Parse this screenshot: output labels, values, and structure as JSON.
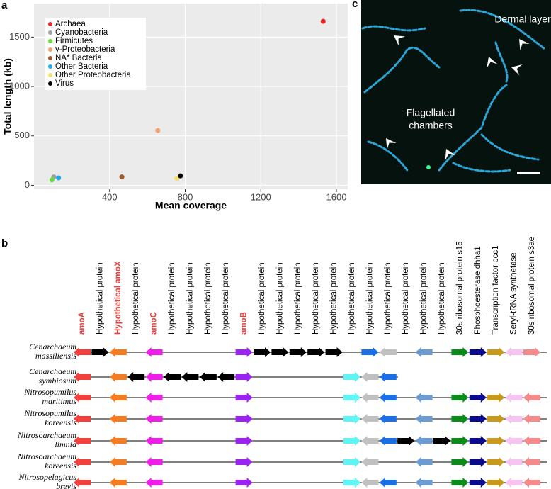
{
  "panel_labels": [
    "a",
    "b",
    "c"
  ],
  "chart_data": {
    "type": "scatter",
    "xlabel": "Mean coverage",
    "ylabel": "Total length (kb)",
    "xlim": [
      0,
      1660
    ],
    "ylim": [
      -40,
      1840
    ],
    "xticks": [
      400,
      800,
      1200,
      1600
    ],
    "yticks": [
      0,
      500,
      1000,
      1500
    ],
    "grid": true,
    "legend": "upper left",
    "series": [
      {
        "name": "Archaea",
        "color": "#ee2222",
        "x": [
          1530
        ],
        "values": [
          1660
        ]
      },
      {
        "name": "Cyanobacteria",
        "color": "#a0a0a0",
        "x": [
          105
        ],
        "values": [
          85
        ]
      },
      {
        "name": "Firmicutes",
        "color": "#66dd33",
        "x": [
          95
        ],
        "values": [
          55
        ]
      },
      {
        "name": "γ-Proteobacteria",
        "color": "#f4a070",
        "x": [
          655
        ],
        "values": [
          555
        ]
      },
      {
        "name": "NA* Bacteria",
        "color": "#a0582a",
        "x": [
          465
        ],
        "values": [
          85
        ]
      },
      {
        "name": "Other Bacteria",
        "color": "#1fa8f0",
        "x": [
          130
        ],
        "values": [
          75
        ]
      },
      {
        "name": "Other Proteobacteria",
        "color": "#f8e070",
        "x": [
          755
        ],
        "values": [
          70
        ]
      },
      {
        "name": "Virus",
        "color": "#000000",
        "x": [
          775
        ],
        "values": [
          95
        ]
      }
    ]
  },
  "image": {
    "annotations": [
      [
        "Dermal layer"
      ],
      [
        "Flagellated",
        "chambers"
      ]
    ]
  },
  "genes": {
    "columns": [
      {
        "label": "amoA",
        "color": "#e8413c"
      },
      {
        "label": "Hypothetical protein",
        "color": "#000000"
      },
      {
        "label": "Hypothetical amoX",
        "color": "#e8413c"
      },
      {
        "label": "Hypothetical protein",
        "color": "#000000"
      },
      {
        "label": "amoC",
        "color": "#e8413c"
      },
      {
        "label": "Hypothetical protein",
        "color": "#000000"
      },
      {
        "label": "Hypothetical protein",
        "color": "#000000"
      },
      {
        "label": "Hypothetical protein",
        "color": "#000000"
      },
      {
        "label": "Hypothetical protein",
        "color": "#000000"
      },
      {
        "label": "amoB",
        "color": "#e8413c"
      },
      {
        "label": "Hypothetical protein",
        "color": "#000000"
      },
      {
        "label": "Hypothetical protein",
        "color": "#000000"
      },
      {
        "label": "Hypothetical protein",
        "color": "#000000"
      },
      {
        "label": "Hypothetical protein",
        "color": "#000000"
      },
      {
        "label": "Hypothetical protein",
        "color": "#000000"
      },
      {
        "label": "Hypothetical protein",
        "color": "#000000"
      },
      {
        "label": "Hypothetical protein",
        "color": "#000000"
      },
      {
        "label": "Hypothetical protein",
        "color": "#000000"
      },
      {
        "label": "Hypothetical protein",
        "color": "#000000"
      },
      {
        "label": "Hypothetical protein",
        "color": "#000000"
      },
      {
        "label": "Hypothetical protein",
        "color": "#000000"
      },
      {
        "label": "30s ribosomal protein s15",
        "color": "#000000"
      },
      {
        "label": "Phosphoesterase dhha1",
        "color": "#000000"
      },
      {
        "label": "Transcription factor pcc1",
        "color": "#000000"
      },
      {
        "label": "Seryl-tRNA synthetase",
        "color": "#000000"
      },
      {
        "label": "30s ribosomal protein s3ae",
        "color": "#000000"
      }
    ],
    "rows": [
      {
        "name": [
          "Cenarchaeum",
          "massiliensis"
        ],
        "genes": [
          {
            "dir": "L",
            "color": "#f0413c"
          },
          {
            "dir": "R",
            "color": "#000000"
          },
          {
            "dir": "L",
            "color": "#f57c20"
          },
          null,
          {
            "dir": "L",
            "color": "#ee1ee8"
          },
          null,
          null,
          null,
          null,
          {
            "dir": "R",
            "color": "#9b22f0"
          },
          {
            "dir": "R",
            "color": "#000000"
          },
          {
            "dir": "R",
            "color": "#000000"
          },
          {
            "dir": "R",
            "color": "#000000"
          },
          {
            "dir": "R",
            "color": "#000000"
          },
          {
            "dir": "R",
            "color": "#000000"
          },
          null,
          {
            "dir": "R",
            "color": "#1b6fe6"
          },
          {
            "dir": "L",
            "color": "#c0c0c0"
          },
          null,
          {
            "dir": "L",
            "color": "#6b9bd1"
          },
          null,
          {
            "dir": "R",
            "color": "#0a8c1a"
          },
          {
            "dir": "R",
            "color": "#0a0a8c"
          },
          {
            "dir": "R",
            "color": "#c8991a"
          },
          {
            "dir": "L",
            "color": "#f7c3f1"
          },
          {
            "dir": "R",
            "color": "#f48a8a"
          }
        ]
      },
      {
        "name": [
          "Cenarchaeum",
          "symbiosum"
        ],
        "genes": [
          {
            "dir": "L",
            "color": "#f0413c"
          },
          null,
          {
            "dir": "L",
            "color": "#f57c20"
          },
          {
            "dir": "L",
            "color": "#000000"
          },
          {
            "dir": "L",
            "color": "#ee1ee8"
          },
          {
            "dir": "L",
            "color": "#000000"
          },
          {
            "dir": "L",
            "color": "#000000"
          },
          {
            "dir": "L",
            "color": "#000000"
          },
          {
            "dir": "L",
            "color": "#000000"
          },
          {
            "dir": "R",
            "color": "#9b22f0"
          },
          null,
          null,
          null,
          null,
          null,
          {
            "dir": "R",
            "color": "#5ef4f4"
          },
          {
            "dir": "L",
            "color": "#c0c0c0"
          },
          {
            "dir": "L",
            "color": "#1b6fe6"
          },
          null,
          null,
          null,
          null,
          null,
          null,
          null,
          null
        ]
      },
      {
        "name": [
          "Nitrosopumilus",
          "maritimus"
        ],
        "genes": [
          {
            "dir": "L",
            "color": "#f0413c"
          },
          null,
          {
            "dir": "L",
            "color": "#f57c20"
          },
          null,
          {
            "dir": "L",
            "color": "#ee1ee8"
          },
          null,
          null,
          null,
          null,
          {
            "dir": "R",
            "color": "#9b22f0"
          },
          null,
          null,
          null,
          null,
          null,
          {
            "dir": "R",
            "color": "#5ef4f4"
          },
          {
            "dir": "L",
            "color": "#c0c0c0"
          },
          {
            "dir": "L",
            "color": "#1b6fe6"
          },
          null,
          {
            "dir": "L",
            "color": "#6b9bd1"
          },
          null,
          {
            "dir": "R",
            "color": "#0a8c1a"
          },
          {
            "dir": "R",
            "color": "#0a0a8c"
          },
          {
            "dir": "R",
            "color": "#c8991a"
          },
          {
            "dir": "L",
            "color": "#f7c3f1"
          },
          {
            "dir": "L",
            "color": "#f48a8a"
          }
        ]
      },
      {
        "name": [
          "Nitrosopumilus",
          "koreensis"
        ],
        "genes": [
          {
            "dir": "L",
            "color": "#f0413c"
          },
          null,
          {
            "dir": "L",
            "color": "#f57c20"
          },
          null,
          {
            "dir": "L",
            "color": "#ee1ee8"
          },
          null,
          null,
          null,
          null,
          {
            "dir": "R",
            "color": "#9b22f0"
          },
          null,
          null,
          null,
          null,
          null,
          {
            "dir": "R",
            "color": "#5ef4f4"
          },
          {
            "dir": "L",
            "color": "#c0c0c0"
          },
          {
            "dir": "L",
            "color": "#1b6fe6"
          },
          null,
          {
            "dir": "L",
            "color": "#6b9bd1"
          },
          null,
          {
            "dir": "R",
            "color": "#0a8c1a"
          },
          {
            "dir": "R",
            "color": "#0a0a8c"
          },
          {
            "dir": "R",
            "color": "#c8991a"
          },
          {
            "dir": "L",
            "color": "#f7c3f1"
          },
          {
            "dir": "L",
            "color": "#f48a8a"
          }
        ]
      },
      {
        "name": [
          "Nitrosoarchaeum",
          "limnia"
        ],
        "genes": [
          {
            "dir": "L",
            "color": "#f0413c"
          },
          null,
          {
            "dir": "L",
            "color": "#f57c20"
          },
          null,
          {
            "dir": "L",
            "color": "#ee1ee8"
          },
          null,
          null,
          null,
          null,
          {
            "dir": "R",
            "color": "#9b22f0"
          },
          null,
          null,
          null,
          null,
          null,
          {
            "dir": "R",
            "color": "#5ef4f4"
          },
          {
            "dir": "L",
            "color": "#c0c0c0"
          },
          {
            "dir": "L",
            "color": "#1b6fe6"
          },
          {
            "dir": "R",
            "color": "#000000"
          },
          {
            "dir": "L",
            "color": "#6b9bd1"
          },
          {
            "dir": "R",
            "color": "#000000"
          },
          {
            "dir": "R",
            "color": "#0a8c1a"
          },
          {
            "dir": "R",
            "color": "#0a0a8c"
          },
          {
            "dir": "R",
            "color": "#c8991a"
          },
          {
            "dir": "L",
            "color": "#f7c3f1"
          },
          {
            "dir": "L",
            "color": "#f48a8a"
          }
        ]
      },
      {
        "name": [
          "Nitrosoarchaeum",
          "koreensis"
        ],
        "genes": [
          {
            "dir": "L",
            "color": "#f0413c"
          },
          null,
          {
            "dir": "L",
            "color": "#f57c20"
          },
          null,
          {
            "dir": "L",
            "color": "#ee1ee8"
          },
          null,
          null,
          null,
          null,
          {
            "dir": "R",
            "color": "#9b22f0"
          },
          null,
          null,
          null,
          null,
          null,
          {
            "dir": "R",
            "color": "#5ef4f4"
          },
          {
            "dir": "L",
            "color": "#c0c0c0"
          },
          null,
          null,
          {
            "dir": "L",
            "color": "#6b9bd1"
          },
          null,
          {
            "dir": "R",
            "color": "#0a8c1a"
          },
          {
            "dir": "R",
            "color": "#0a0a8c"
          },
          {
            "dir": "R",
            "color": "#c8991a"
          },
          {
            "dir": "L",
            "color": "#f7c3f1"
          },
          {
            "dir": "L",
            "color": "#f48a8a"
          }
        ]
      },
      {
        "name": [
          "Nitrosopelagicus",
          "brevis"
        ],
        "genes": [
          {
            "dir": "L",
            "color": "#f0413c"
          },
          null,
          {
            "dir": "L",
            "color": "#f57c20"
          },
          null,
          {
            "dir": "L",
            "color": "#ee1ee8"
          },
          null,
          null,
          null,
          null,
          {
            "dir": "R",
            "color": "#9b22f0"
          },
          null,
          null,
          null,
          null,
          null,
          {
            "dir": "R",
            "color": "#5ef4f4"
          },
          {
            "dir": "L",
            "color": "#c0c0c0"
          },
          {
            "dir": "L",
            "color": "#1b6fe6"
          },
          null,
          {
            "dir": "L",
            "color": "#6b9bd1"
          },
          null,
          {
            "dir": "R",
            "color": "#0a8c1a"
          },
          {
            "dir": "R",
            "color": "#0a0a8c"
          },
          {
            "dir": "R",
            "color": "#c8991a"
          },
          {
            "dir": "L",
            "color": "#f7c3f1"
          },
          {
            "dir": "L",
            "color": "#f48a8a"
          }
        ]
      }
    ]
  }
}
